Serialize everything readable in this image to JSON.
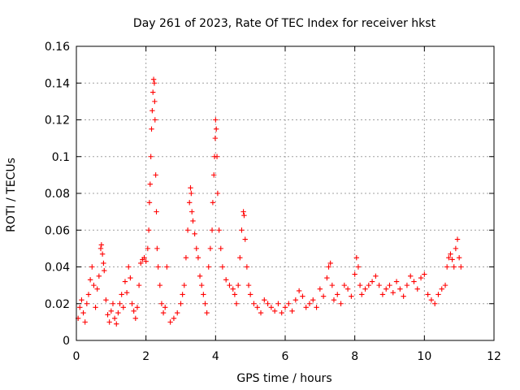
{
  "chart_data": {
    "type": "scatter",
    "title": "Day 261 of 2023, Rate Of TEC Index for receiver hkst",
    "xlabel": "GPS time / hours",
    "ylabel": "ROTI / TECUs",
    "xlim": [
      0,
      12
    ],
    "ylim": [
      0,
      0.16
    ],
    "x_ticks": [
      0,
      2,
      4,
      6,
      8,
      10,
      12
    ],
    "y_ticks": [
      0,
      0.02,
      0.04,
      0.06,
      0.08,
      0.1,
      0.12,
      0.14,
      0.16
    ],
    "x_tick_labels": [
      "0",
      "2",
      "4",
      "6",
      "8",
      "10",
      "12"
    ],
    "y_tick_labels": [
      "0",
      "0.02",
      "0.04",
      "0.06",
      "0.08",
      "0.1",
      "0.12",
      "0.14",
      "0.16"
    ],
    "grid": true,
    "marker": "plus",
    "color": "#ff0000",
    "series": [
      {
        "name": "ROTI",
        "points": [
          [
            0.05,
            0.012
          ],
          [
            0.1,
            0.018
          ],
          [
            0.15,
            0.022
          ],
          [
            0.2,
            0.015
          ],
          [
            0.25,
            0.01
          ],
          [
            0.3,
            0.02
          ],
          [
            0.35,
            0.025
          ],
          [
            0.4,
            0.033
          ],
          [
            0.45,
            0.04
          ],
          [
            0.5,
            0.03
          ],
          [
            0.55,
            0.018
          ],
          [
            0.6,
            0.028
          ],
          [
            0.65,
            0.035
          ],
          [
            0.7,
            0.05
          ],
          [
            0.72,
            0.052
          ],
          [
            0.75,
            0.047
          ],
          [
            0.78,
            0.042
          ],
          [
            0.8,
            0.038
          ],
          [
            0.85,
            0.022
          ],
          [
            0.9,
            0.014
          ],
          [
            0.95,
            0.01
          ],
          [
            1.0,
            0.016
          ],
          [
            1.05,
            0.02
          ],
          [
            1.1,
            0.012
          ],
          [
            1.15,
            0.009
          ],
          [
            1.2,
            0.015
          ],
          [
            1.25,
            0.02
          ],
          [
            1.3,
            0.025
          ],
          [
            1.35,
            0.018
          ],
          [
            1.4,
            0.032
          ],
          [
            1.45,
            0.026
          ],
          [
            1.5,
            0.04
          ],
          [
            1.55,
            0.034
          ],
          [
            1.6,
            0.02
          ],
          [
            1.65,
            0.016
          ],
          [
            1.7,
            0.012
          ],
          [
            1.75,
            0.018
          ],
          [
            1.8,
            0.03
          ],
          [
            1.85,
            0.042
          ],
          [
            1.9,
            0.044
          ],
          [
            1.95,
            0.045
          ],
          [
            2.0,
            0.043
          ],
          [
            2.05,
            0.05
          ],
          [
            2.08,
            0.06
          ],
          [
            2.1,
            0.075
          ],
          [
            2.12,
            0.085
          ],
          [
            2.14,
            0.1
          ],
          [
            2.16,
            0.115
          ],
          [
            2.18,
            0.125
          ],
          [
            2.2,
            0.135
          ],
          [
            2.22,
            0.142
          ],
          [
            2.24,
            0.14
          ],
          [
            2.25,
            0.13
          ],
          [
            2.26,
            0.12
          ],
          [
            2.28,
            0.09
          ],
          [
            2.3,
            0.07
          ],
          [
            2.32,
            0.05
          ],
          [
            2.35,
            0.04
          ],
          [
            2.4,
            0.03
          ],
          [
            2.45,
            0.02
          ],
          [
            2.5,
            0.015
          ],
          [
            2.55,
            0.018
          ],
          [
            2.6,
            0.04
          ],
          [
            2.7,
            0.01
          ],
          [
            2.8,
            0.012
          ],
          [
            2.9,
            0.015
          ],
          [
            3.0,
            0.02
          ],
          [
            3.05,
            0.025
          ],
          [
            3.1,
            0.03
          ],
          [
            3.15,
            0.045
          ],
          [
            3.2,
            0.06
          ],
          [
            3.25,
            0.075
          ],
          [
            3.28,
            0.083
          ],
          [
            3.3,
            0.08
          ],
          [
            3.32,
            0.07
          ],
          [
            3.35,
            0.065
          ],
          [
            3.4,
            0.058
          ],
          [
            3.45,
            0.05
          ],
          [
            3.5,
            0.045
          ],
          [
            3.55,
            0.035
          ],
          [
            3.6,
            0.03
          ],
          [
            3.65,
            0.025
          ],
          [
            3.7,
            0.02
          ],
          [
            3.75,
            0.015
          ],
          [
            3.8,
            0.04
          ],
          [
            3.85,
            0.05
          ],
          [
            3.9,
            0.06
          ],
          [
            3.92,
            0.075
          ],
          [
            3.95,
            0.09
          ],
          [
            3.97,
            0.1
          ],
          [
            3.99,
            0.11
          ],
          [
            4.0,
            0.12
          ],
          [
            4.02,
            0.115
          ],
          [
            4.04,
            0.1
          ],
          [
            4.06,
            0.08
          ],
          [
            4.1,
            0.06
          ],
          [
            4.15,
            0.05
          ],
          [
            4.2,
            0.04
          ],
          [
            4.3,
            0.033
          ],
          [
            4.4,
            0.03
          ],
          [
            4.5,
            0.028
          ],
          [
            4.55,
            0.025
          ],
          [
            4.6,
            0.02
          ],
          [
            4.65,
            0.03
          ],
          [
            4.7,
            0.045
          ],
          [
            4.75,
            0.06
          ],
          [
            4.8,
            0.07
          ],
          [
            4.82,
            0.068
          ],
          [
            4.85,
            0.055
          ],
          [
            4.9,
            0.04
          ],
          [
            4.95,
            0.03
          ],
          [
            5.0,
            0.025
          ],
          [
            5.1,
            0.02
          ],
          [
            5.2,
            0.018
          ],
          [
            5.3,
            0.015
          ],
          [
            5.4,
            0.022
          ],
          [
            5.5,
            0.02
          ],
          [
            5.6,
            0.018
          ],
          [
            5.7,
            0.016
          ],
          [
            5.8,
            0.02
          ],
          [
            5.9,
            0.015
          ],
          [
            6.0,
            0.018
          ],
          [
            6.1,
            0.02
          ],
          [
            6.2,
            0.016
          ],
          [
            6.3,
            0.022
          ],
          [
            6.4,
            0.027
          ],
          [
            6.5,
            0.024
          ],
          [
            6.6,
            0.018
          ],
          [
            6.7,
            0.02
          ],
          [
            6.8,
            0.022
          ],
          [
            6.9,
            0.018
          ],
          [
            7.0,
            0.028
          ],
          [
            7.1,
            0.024
          ],
          [
            7.2,
            0.034
          ],
          [
            7.25,
            0.04
          ],
          [
            7.3,
            0.042
          ],
          [
            7.35,
            0.03
          ],
          [
            7.4,
            0.022
          ],
          [
            7.5,
            0.025
          ],
          [
            7.6,
            0.02
          ],
          [
            7.7,
            0.03
          ],
          [
            7.8,
            0.028
          ],
          [
            7.9,
            0.024
          ],
          [
            8.0,
            0.036
          ],
          [
            8.05,
            0.045
          ],
          [
            8.1,
            0.04
          ],
          [
            8.15,
            0.03
          ],
          [
            8.2,
            0.025
          ],
          [
            8.3,
            0.028
          ],
          [
            8.4,
            0.03
          ],
          [
            8.5,
            0.032
          ],
          [
            8.6,
            0.035
          ],
          [
            8.7,
            0.03
          ],
          [
            8.8,
            0.025
          ],
          [
            8.9,
            0.028
          ],
          [
            9.0,
            0.03
          ],
          [
            9.1,
            0.026
          ],
          [
            9.2,
            0.032
          ],
          [
            9.3,
            0.028
          ],
          [
            9.4,
            0.024
          ],
          [
            9.5,
            0.03
          ],
          [
            9.6,
            0.035
          ],
          [
            9.7,
            0.032
          ],
          [
            9.8,
            0.028
          ],
          [
            9.9,
            0.034
          ],
          [
            10.0,
            0.036
          ],
          [
            10.1,
            0.025
          ],
          [
            10.2,
            0.022
          ],
          [
            10.3,
            0.02
          ],
          [
            10.4,
            0.025
          ],
          [
            10.5,
            0.028
          ],
          [
            10.6,
            0.03
          ],
          [
            10.65,
            0.04
          ],
          [
            10.7,
            0.045
          ],
          [
            10.75,
            0.047
          ],
          [
            10.8,
            0.044
          ],
          [
            10.85,
            0.04
          ],
          [
            10.9,
            0.05
          ],
          [
            10.95,
            0.055
          ],
          [
            11.0,
            0.045
          ],
          [
            11.05,
            0.04
          ]
        ]
      }
    ]
  }
}
